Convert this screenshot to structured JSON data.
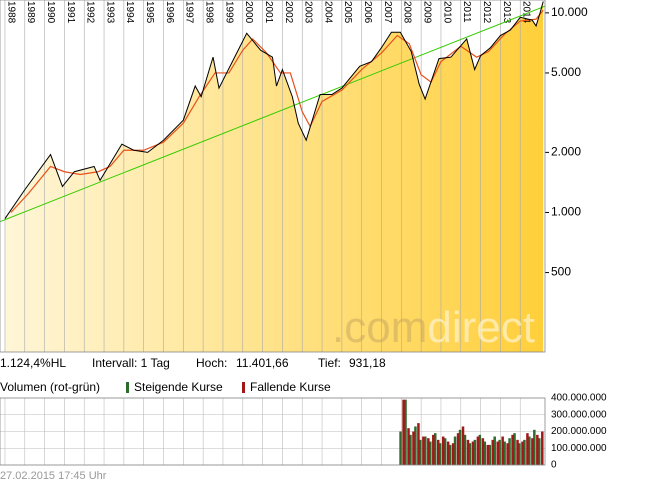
{
  "chart_data": {
    "type": "line",
    "log": true,
    "xlim": [
      1987.75,
      2015.25
    ],
    "xticks": [
      1988,
      1989,
      1990,
      1991,
      1992,
      1993,
      1994,
      1995,
      1996,
      1997,
      1998,
      1999,
      2000,
      2001,
      2002,
      2003,
      2004,
      2005,
      2006,
      2007,
      2008,
      2009,
      2010,
      2011,
      2012,
      2013,
      2014
    ],
    "ylim": [
      200,
      11600
    ],
    "yticks": [
      {
        "value": 10000,
        "label": "10.000"
      },
      {
        "value": 5000,
        "label": "5.000"
      },
      {
        "value": 2000,
        "label": "2.000"
      },
      {
        "value": 1000,
        "label": "1.000"
      },
      500
    ],
    "grid": true,
    "series": [
      {
        "color": "#000000",
        "x": [
          1988.0,
          1989.0,
          1990.3,
          1990.9,
          1991.5,
          1992.5,
          1992.8,
          1993.9,
          1994.5,
          1995.2,
          1996.0,
          1997.0,
          1997.6,
          1997.9,
          1998.5,
          1998.8,
          1999.9,
          2000.2,
          2000.9,
          2001.5,
          2001.7,
          2002.0,
          2002.5,
          2002.8,
          2003.2,
          2003.9,
          2004.5,
          2005.0,
          2005.9,
          2006.5,
          2007.0,
          2007.5,
          2007.95,
          2008.5,
          2008.9,
          2009.2,
          2009.9,
          2010.5,
          2011.3,
          2011.7,
          2012.0,
          2012.5,
          2013.0,
          2013.5,
          2014.0,
          2014.6,
          2014.8,
          2015.0,
          2015.16
        ],
        "values": [
          931,
          1300,
          1950,
          1350,
          1600,
          1700,
          1450,
          2200,
          2050,
          2000,
          2300,
          2900,
          4300,
          3800,
          6000,
          4200,
          6900,
          7900,
          6500,
          6000,
          4300,
          5200,
          3800,
          2800,
          2300,
          3900,
          3900,
          4200,
          5400,
          5700,
          6700,
          8000,
          8000,
          6400,
          4400,
          3700,
          5900,
          6000,
          7400,
          5200,
          6100,
          6700,
          7700,
          8200,
          9500,
          9200,
          8600,
          10000,
          11401
        ]
      },
      {
        "color": "#e8501a",
        "x": [
          1988.3,
          1989.2,
          1990.3,
          1991.0,
          1991.8,
          1992.7,
          1993.3,
          1994.0,
          1995.0,
          1996.0,
          1997.0,
          1997.8,
          1998.6,
          1999.3,
          2000.0,
          2000.5,
          2001.2,
          2001.9,
          2002.4,
          2003.0,
          2003.4,
          2004.0,
          2005.0,
          2006.0,
          2007.0,
          2007.8,
          2008.4,
          2009.0,
          2009.5,
          2010.0,
          2011.0,
          2011.8,
          2012.4,
          2013.2,
          2014.0,
          2014.8,
          2015.16
        ],
        "values": [
          1000,
          1250,
          1700,
          1600,
          1550,
          1600,
          1700,
          2050,
          2050,
          2250,
          2800,
          3800,
          5000,
          5000,
          6500,
          7400,
          6300,
          5000,
          5000,
          3200,
          2700,
          3600,
          4100,
          5200,
          6300,
          7700,
          7000,
          4900,
          4500,
          5700,
          6800,
          6000,
          6400,
          7800,
          9100,
          9300,
          10300
        ]
      }
    ],
    "trendline": {
      "color": "#33cc00",
      "x": [
        1987.75,
        2015.25
      ],
      "values": [
        900,
        10800
      ]
    },
    "area_colors": [
      "#fff6d8",
      "#ffcf3a"
    ],
    "watermark": [
      ".com",
      "direct"
    ],
    "stats": [
      "1.124,4%HL",
      "Intervall: 1 Tag",
      "Hoch:",
      "11.401,66",
      "Tief:",
      "931,18"
    ],
    "volume": {
      "type": "bar",
      "title": "Volumen (rot-grün)",
      "ylim": [
        0,
        400000000
      ],
      "yticks": [
        {
          "value": 400000000,
          "label": "400.000.000"
        },
        {
          "value": 300000000,
          "label": "300.000.000"
        },
        {
          "value": 200000000,
          "label": "200.000.000"
        },
        {
          "value": 100000000,
          "label": "100.000.000"
        },
        0
      ],
      "x": [
        2008,
        2008.25,
        2008.5,
        2008.75,
        2009,
        2009.25,
        2009.5,
        2009.75,
        2010,
        2010.25,
        2010.5,
        2010.75,
        2011,
        2011.25,
        2011.5,
        2011.75,
        2012,
        2012.25,
        2012.5,
        2012.75,
        2013,
        2013.25,
        2013.5,
        2013.75,
        2014,
        2014.25,
        2014.5,
        2014.75,
        2015
      ],
      "series": [
        {
          "name": "Steigende Kurse",
          "color": "#2e6b2e",
          "values": [
            200000000,
            390000000,
            180000000,
            230000000,
            150000000,
            170000000,
            140000000,
            190000000,
            130000000,
            160000000,
            120000000,
            170000000,
            210000000,
            180000000,
            130000000,
            150000000,
            180000000,
            140000000,
            120000000,
            170000000,
            150000000,
            140000000,
            160000000,
            190000000,
            130000000,
            150000000,
            170000000,
            210000000,
            160000000
          ]
        },
        {
          "name": "Fallende Kurse",
          "color": "#a01818",
          "values": [
            390000000,
            220000000,
            200000000,
            250000000,
            170000000,
            160000000,
            180000000,
            150000000,
            170000000,
            140000000,
            130000000,
            190000000,
            230000000,
            150000000,
            140000000,
            170000000,
            160000000,
            120000000,
            150000000,
            140000000,
            170000000,
            130000000,
            180000000,
            150000000,
            140000000,
            190000000,
            160000000,
            180000000,
            200000000
          ]
        }
      ]
    },
    "timestamp": "27.02.2015 17:45 Uhr"
  }
}
